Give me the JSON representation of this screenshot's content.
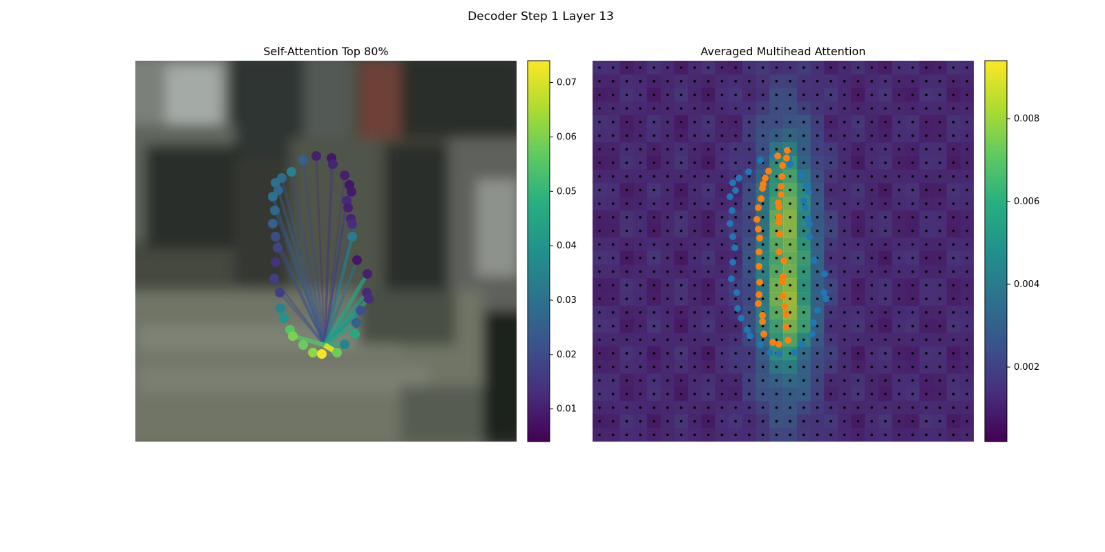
{
  "figure": {
    "suptitle": "Decoder Step 1 Layer 13"
  },
  "chart_data": [
    {
      "type": "scatter",
      "title": "Self-Attention Top 80%",
      "description_shown": "contour points on blurred image, lines from query point to attended points",
      "colormap": "viridis",
      "colorbar": {
        "ticks": [
          0.01,
          0.02,
          0.03,
          0.04,
          0.05,
          0.06,
          0.07
        ],
        "tick_labels": [
          "0.01",
          "0.02",
          "0.03",
          "0.04",
          "0.05",
          "0.06",
          "0.07"
        ],
        "vmin": 0.004,
        "vmax": 0.074
      },
      "query_point": {
        "x": 274,
        "y": 412
      },
      "points": [
        {
          "x": 262,
          "y": 138,
          "v": 0.01
        },
        {
          "x": 284,
          "y": 141,
          "v": 0.008
        },
        {
          "x": 286,
          "y": 150,
          "v": 0.011
        },
        {
          "x": 243,
          "y": 144,
          "v": 0.025
        },
        {
          "x": 226,
          "y": 161,
          "v": 0.035
        },
        {
          "x": 303,
          "y": 166,
          "v": 0.01
        },
        {
          "x": 212,
          "y": 170,
          "v": 0.028
        },
        {
          "x": 310,
          "y": 180,
          "v": 0.008
        },
        {
          "x": 203,
          "y": 177,
          "v": 0.03
        },
        {
          "x": 207,
          "y": 188,
          "v": 0.027
        },
        {
          "x": 313,
          "y": 190,
          "v": 0.009
        },
        {
          "x": 199,
          "y": 197,
          "v": 0.03
        },
        {
          "x": 306,
          "y": 203,
          "v": 0.012
        },
        {
          "x": 308,
          "y": 213,
          "v": 0.01
        },
        {
          "x": 202,
          "y": 217,
          "v": 0.027
        },
        {
          "x": 312,
          "y": 229,
          "v": 0.011
        },
        {
          "x": 314,
          "y": 237,
          "v": 0.013
        },
        {
          "x": 199,
          "y": 236,
          "v": 0.025
        },
        {
          "x": 203,
          "y": 255,
          "v": 0.02
        },
        {
          "x": 314,
          "y": 255,
          "v": 0.033
        },
        {
          "x": 206,
          "y": 271,
          "v": 0.018
        },
        {
          "x": 203,
          "y": 292,
          "v": 0.014
        },
        {
          "x": 321,
          "y": 289,
          "v": 0.008
        },
        {
          "x": 336,
          "y": 309,
          "v": 0.01
        },
        {
          "x": 201,
          "y": 316,
          "v": 0.017
        },
        {
          "x": 209,
          "y": 336,
          "v": 0.017
        },
        {
          "x": 335,
          "y": 336,
          "v": 0.012
        },
        {
          "x": 338,
          "y": 345,
          "v": 0.013
        },
        {
          "x": 210,
          "y": 359,
          "v": 0.036
        },
        {
          "x": 326,
          "y": 362,
          "v": 0.021
        },
        {
          "x": 215,
          "y": 373,
          "v": 0.04
        },
        {
          "x": 320,
          "y": 380,
          "v": 0.025
        },
        {
          "x": 224,
          "y": 390,
          "v": 0.055
        },
        {
          "x": 228,
          "y": 399,
          "v": 0.06
        },
        {
          "x": 318,
          "y": 396,
          "v": 0.046
        },
        {
          "x": 243,
          "y": 412,
          "v": 0.058
        },
        {
          "x": 303,
          "y": 411,
          "v": 0.035
        },
        {
          "x": 257,
          "y": 423,
          "v": 0.062
        },
        {
          "x": 270,
          "y": 425,
          "v": 0.073
        },
        {
          "x": 292,
          "y": 423,
          "v": 0.058
        }
      ],
      "attention_lines": [
        {
          "to": 0,
          "v": 0.012
        },
        {
          "to": 1,
          "v": 0.014
        },
        {
          "to": 2,
          "v": 0.015
        },
        {
          "to": 3,
          "v": 0.02
        },
        {
          "to": 4,
          "v": 0.02
        },
        {
          "to": 5,
          "v": 0.015
        },
        {
          "to": 6,
          "v": 0.022
        },
        {
          "to": 7,
          "v": 0.016
        },
        {
          "to": 9,
          "v": 0.024
        },
        {
          "to": 11,
          "v": 0.025
        },
        {
          "to": 12,
          "v": 0.018
        },
        {
          "to": 14,
          "v": 0.022
        },
        {
          "to": 16,
          "v": 0.02
        },
        {
          "to": 18,
          "v": 0.022
        },
        {
          "to": 19,
          "v": 0.035
        },
        {
          "to": 20,
          "v": 0.02
        },
        {
          "to": 22,
          "v": 0.03
        },
        {
          "to": 23,
          "v": 0.045
        },
        {
          "to": 24,
          "v": 0.02
        },
        {
          "to": 25,
          "v": 0.022
        },
        {
          "to": 26,
          "v": 0.042
        },
        {
          "to": 27,
          "v": 0.044
        },
        {
          "to": 29,
          "v": 0.04
        },
        {
          "to": 31,
          "v": 0.045
        },
        {
          "to": 33,
          "v": 0.055
        },
        {
          "to": 36,
          "v": 0.048
        },
        {
          "to": 39,
          "v": 0.07
        }
      ]
    },
    {
      "type": "heatmap",
      "title": "Averaged Multihead Attention",
      "colormap": "viridis",
      "colorbar": {
        "ticks": [
          0.002,
          0.004,
          0.006,
          0.008
        ],
        "tick_labels": [
          "0.002",
          "0.004",
          "0.006",
          "0.008"
        ],
        "vmin": 0.0002,
        "vmax": 0.0094
      },
      "grid_size": 28,
      "blue_points": [
        {
          "x": 262,
          "y": 138
        },
        {
          "x": 284,
          "y": 141
        },
        {
          "x": 286,
          "y": 150
        },
        {
          "x": 243,
          "y": 144
        },
        {
          "x": 226,
          "y": 161
        },
        {
          "x": 303,
          "y": 166
        },
        {
          "x": 212,
          "y": 170
        },
        {
          "x": 310,
          "y": 180
        },
        {
          "x": 203,
          "y": 177
        },
        {
          "x": 207,
          "y": 188
        },
        {
          "x": 313,
          "y": 190
        },
        {
          "x": 199,
          "y": 197
        },
        {
          "x": 306,
          "y": 203
        },
        {
          "x": 308,
          "y": 213
        },
        {
          "x": 202,
          "y": 217
        },
        {
          "x": 312,
          "y": 229
        },
        {
          "x": 314,
          "y": 237
        },
        {
          "x": 199,
          "y": 236
        },
        {
          "x": 203,
          "y": 255
        },
        {
          "x": 314,
          "y": 255
        },
        {
          "x": 206,
          "y": 271
        },
        {
          "x": 203,
          "y": 292
        },
        {
          "x": 321,
          "y": 289
        },
        {
          "x": 336,
          "y": 309
        },
        {
          "x": 201,
          "y": 316
        },
        {
          "x": 209,
          "y": 336
        },
        {
          "x": 335,
          "y": 336
        },
        {
          "x": 338,
          "y": 345
        },
        {
          "x": 210,
          "y": 359
        },
        {
          "x": 326,
          "y": 362
        },
        {
          "x": 215,
          "y": 373
        },
        {
          "x": 320,
          "y": 380
        },
        {
          "x": 224,
          "y": 390
        },
        {
          "x": 228,
          "y": 399
        },
        {
          "x": 318,
          "y": 396
        },
        {
          "x": 243,
          "y": 412
        },
        {
          "x": 303,
          "y": 411
        },
        {
          "x": 257,
          "y": 423
        },
        {
          "x": 270,
          "y": 425
        },
        {
          "x": 292,
          "y": 423
        }
      ],
      "orange_points": [
        {
          "x": 282,
          "y": 130
        },
        {
          "x": 268,
          "y": 138
        },
        {
          "x": 281,
          "y": 141
        },
        {
          "x": 275,
          "y": 152
        },
        {
          "x": 255,
          "y": 160
        },
        {
          "x": 250,
          "y": 170
        },
        {
          "x": 274,
          "y": 168
        },
        {
          "x": 247,
          "y": 179
        },
        {
          "x": 273,
          "y": 182
        },
        {
          "x": 246,
          "y": 185
        },
        {
          "x": 273,
          "y": 194
        },
        {
          "x": 244,
          "y": 200
        },
        {
          "x": 269,
          "y": 206
        },
        {
          "x": 240,
          "y": 213
        },
        {
          "x": 270,
          "y": 212
        },
        {
          "x": 270,
          "y": 226
        },
        {
          "x": 238,
          "y": 230
        },
        {
          "x": 270,
          "y": 234
        },
        {
          "x": 240,
          "y": 244
        },
        {
          "x": 242,
          "y": 257
        },
        {
          "x": 271,
          "y": 251
        },
        {
          "x": 241,
          "y": 277
        },
        {
          "x": 270,
          "y": 277
        },
        {
          "x": 277,
          "y": 290
        },
        {
          "x": 241,
          "y": 298
        },
        {
          "x": 276,
          "y": 313
        },
        {
          "x": 275,
          "y": 320
        },
        {
          "x": 242,
          "y": 321
        },
        {
          "x": 276,
          "y": 341
        },
        {
          "x": 241,
          "y": 339
        },
        {
          "x": 240,
          "y": 352
        },
        {
          "x": 278,
          "y": 356
        },
        {
          "x": 246,
          "y": 369
        },
        {
          "x": 280,
          "y": 367
        },
        {
          "x": 246,
          "y": 378
        },
        {
          "x": 280,
          "y": 386
        },
        {
          "x": 248,
          "y": 396
        },
        {
          "x": 261,
          "y": 408
        },
        {
          "x": 270,
          "y": 411
        },
        {
          "x": 283,
          "y": 405
        }
      ]
    }
  ]
}
